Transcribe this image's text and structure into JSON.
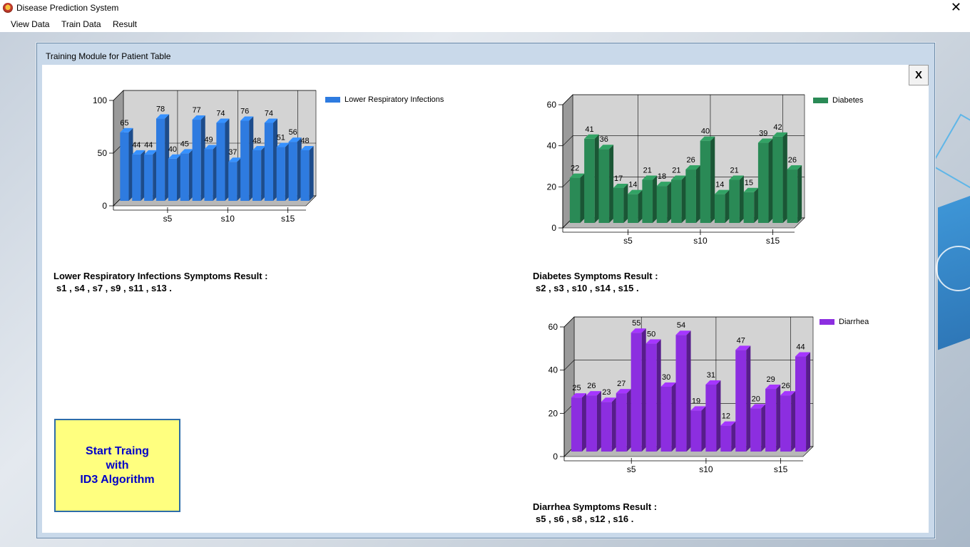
{
  "app": {
    "title": "Disease Prediction System"
  },
  "menu": {
    "items": [
      "View Data",
      "Train Data",
      "Result"
    ]
  },
  "window": {
    "title": "Training Module for Patient Table",
    "close_label": "X"
  },
  "start_button": {
    "label": "Start Traing\nwith\nID3 Algorithm"
  },
  "results": [
    {
      "title": "Lower Respiratory Infections Symptoms Result :",
      "values": "s1 , s4 , s7 , s9 , s11 , s13 ."
    },
    {
      "title": "Diabetes Symptoms Result :",
      "values": "s2 , s3 , s10 , s14 , s15 ."
    },
    {
      "title": "Diarrhea Symptoms Result :",
      "values": "s5 , s6 , s8 , s12 , s16 ."
    }
  ],
  "chart_data": [
    {
      "type": "bar",
      "series_name": "Lower Respiratory Infections",
      "color": "#2e7be0",
      "values": [
        65,
        44,
        44,
        78,
        40,
        45,
        77,
        49,
        74,
        37,
        76,
        48,
        74,
        51,
        56,
        48
      ],
      "ylim": [
        0,
        100
      ],
      "yticks": [
        0,
        50,
        100
      ],
      "xtick_labels": [
        {
          "index": 5,
          "label": "s5"
        },
        {
          "index": 10,
          "label": "s10"
        },
        {
          "index": 15,
          "label": "s15"
        }
      ],
      "legend": "top-right"
    },
    {
      "type": "bar",
      "series_name": "Diabetes",
      "color": "#2a8a56",
      "values": [
        22,
        41,
        36,
        17,
        14,
        21,
        18,
        21,
        26,
        40,
        14,
        21,
        15,
        39,
        42,
        26
      ],
      "ylim": [
        0,
        60
      ],
      "yticks": [
        0,
        20,
        40,
        60
      ],
      "xtick_labels": [
        {
          "index": 5,
          "label": "s5"
        },
        {
          "index": 10,
          "label": "s10"
        },
        {
          "index": 15,
          "label": "s15"
        }
      ],
      "legend": "top-right"
    },
    {
      "type": "bar",
      "series_name": "Diarrhea",
      "color": "#8c2ee0",
      "values": [
        25,
        26,
        23,
        27,
        55,
        50,
        30,
        54,
        19,
        31,
        12,
        47,
        20,
        29,
        26,
        44
      ],
      "ylim": [
        0,
        60
      ],
      "yticks": [
        0,
        20,
        40,
        60
      ],
      "xtick_labels": [
        {
          "index": 5,
          "label": "s5"
        },
        {
          "index": 10,
          "label": "s10"
        },
        {
          "index": 15,
          "label": "s15"
        }
      ],
      "legend": "top-right"
    }
  ]
}
